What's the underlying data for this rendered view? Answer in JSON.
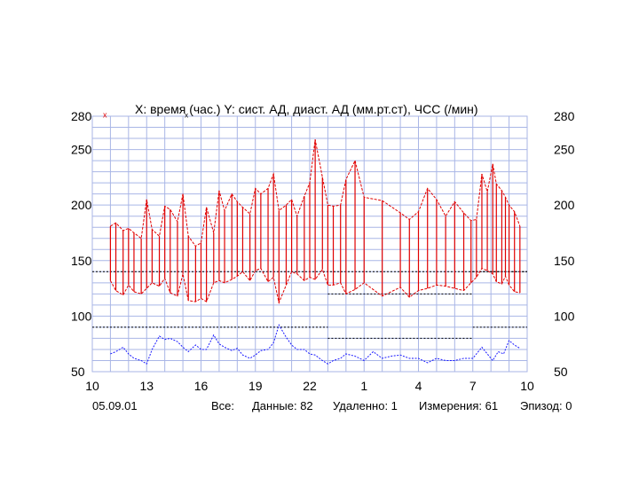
{
  "chart_data": {
    "type": "line",
    "title": "X: время (час.)  Y: сист. АД, диаст. АД (мм.рт.ст), ЧСС (/мин)",
    "x_ticks": [
      "10",
      "13",
      "16",
      "19",
      "22",
      "1",
      "4",
      "7",
      "10"
    ],
    "y_ticks": [
      "50",
      "100",
      "150",
      "200",
      "250",
      "280"
    ],
    "ylim": [
      50,
      280
    ],
    "grid": true,
    "colors": {
      "bp": "#e00000",
      "hr": "#1a1aff",
      "grid": "#a9b6e6",
      "ref": "#000000"
    },
    "reference_lines": [
      {
        "value": 140,
        "from_hour": 10,
        "to_hour": 34,
        "period": "day"
      },
      {
        "value": 120,
        "from_hour": 23,
        "to_hour": 31,
        "period": "night"
      },
      {
        "value": 140,
        "from_hour": 31,
        "to_hour": 34,
        "period": "day"
      },
      {
        "value": 90,
        "from_hour": 10,
        "to_hour": 23,
        "period": "day"
      },
      {
        "value": 80,
        "from_hour": 23,
        "to_hour": 31,
        "period": "night"
      },
      {
        "value": 90,
        "from_hour": 31,
        "to_hour": 34,
        "period": "day"
      }
    ],
    "series": [
      {
        "key": "bp",
        "points": [
          {
            "t": 11.0,
            "sys": 181,
            "dia": 132
          },
          {
            "t": 11.3,
            "sys": 184,
            "dia": 123
          },
          {
            "t": 11.7,
            "sys": 177,
            "dia": 119
          },
          {
            "t": 12.0,
            "sys": 179,
            "dia": 128
          },
          {
            "t": 12.3,
            "sys": 175,
            "dia": 122
          },
          {
            "t": 12.7,
            "sys": 170,
            "dia": 120
          },
          {
            "t": 13.0,
            "sys": 205,
            "dia": 125
          },
          {
            "t": 13.3,
            "sys": 178,
            "dia": 130
          },
          {
            "t": 13.7,
            "sys": 172,
            "dia": 127
          },
          {
            "t": 14.0,
            "sys": 199,
            "dia": 134
          },
          {
            "t": 14.3,
            "sys": 196,
            "dia": 121
          },
          {
            "t": 14.7,
            "sys": 185,
            "dia": 118
          },
          {
            "t": 15.0,
            "sys": 210,
            "dia": 138
          },
          {
            "t": 15.3,
            "sys": 172,
            "dia": 114
          },
          {
            "t": 15.7,
            "sys": 163,
            "dia": 113
          },
          {
            "t": 16.0,
            "sys": 166,
            "dia": 116
          },
          {
            "t": 16.3,
            "sys": 198,
            "dia": 113
          },
          {
            "t": 16.7,
            "sys": 175,
            "dia": 130
          },
          {
            "t": 17.0,
            "sys": 213,
            "dia": 132
          },
          {
            "t": 17.3,
            "sys": 195,
            "dia": 130
          },
          {
            "t": 17.7,
            "sys": 210,
            "dia": 133
          },
          {
            "t": 18.0,
            "sys": 203,
            "dia": 136
          },
          {
            "t": 18.3,
            "sys": 198,
            "dia": 140
          },
          {
            "t": 18.7,
            "sys": 192,
            "dia": 132
          },
          {
            "t": 19.0,
            "sys": 215,
            "dia": 141
          },
          {
            "t": 19.3,
            "sys": 210,
            "dia": 143
          },
          {
            "t": 19.7,
            "sys": 215,
            "dia": 131
          },
          {
            "t": 20.0,
            "sys": 228,
            "dia": 135
          },
          {
            "t": 20.3,
            "sys": 195,
            "dia": 112
          },
          {
            "t": 20.7,
            "sys": 200,
            "dia": 128
          },
          {
            "t": 21.0,
            "sys": 205,
            "dia": 140
          },
          {
            "t": 21.3,
            "sys": 190,
            "dia": 138
          },
          {
            "t": 21.7,
            "sys": 208,
            "dia": 132
          },
          {
            "t": 22.0,
            "sys": 220,
            "dia": 135
          },
          {
            "t": 22.3,
            "sys": 259,
            "dia": 133
          },
          {
            "t": 22.7,
            "sys": 225,
            "dia": 142
          },
          {
            "t": 23.0,
            "sys": 200,
            "dia": 128
          },
          {
            "t": 23.3,
            "sys": 199,
            "dia": 128
          },
          {
            "t": 23.7,
            "sys": 200,
            "dia": 130
          },
          {
            "t": 24.0,
            "sys": 223,
            "dia": 120
          },
          {
            "t": 24.5,
            "sys": 240,
            "dia": 124
          },
          {
            "t": 25.0,
            "sys": 207,
            "dia": 130
          },
          {
            "t": 26.0,
            "sys": 204,
            "dia": 118
          },
          {
            "t": 27.0,
            "sys": 193,
            "dia": 126
          },
          {
            "t": 27.5,
            "sys": 187,
            "dia": 117
          },
          {
            "t": 28.0,
            "sys": 194,
            "dia": 123
          },
          {
            "t": 28.5,
            "sys": 215,
            "dia": 125
          },
          {
            "t": 29.0,
            "sys": 205,
            "dia": 128
          },
          {
            "t": 29.5,
            "sys": 190,
            "dia": 127
          },
          {
            "t": 30.0,
            "sys": 203,
            "dia": 125
          },
          {
            "t": 30.5,
            "sys": 193,
            "dia": 123
          },
          {
            "t": 30.9,
            "sys": 186,
            "dia": 130
          },
          {
            "t": 31.2,
            "sys": 187,
            "dia": 135
          },
          {
            "t": 31.5,
            "sys": 228,
            "dia": 143
          },
          {
            "t": 31.8,
            "sys": 212,
            "dia": 141
          },
          {
            "t": 32.1,
            "sys": 237,
            "dia": 138
          },
          {
            "t": 32.3,
            "sys": 219,
            "dia": 131
          },
          {
            "t": 32.6,
            "sys": 213,
            "dia": 129
          },
          {
            "t": 32.8,
            "sys": 207,
            "dia": 136
          },
          {
            "t": 33.0,
            "sys": 200,
            "dia": 128
          },
          {
            "t": 33.3,
            "sys": 194,
            "dia": 122
          },
          {
            "t": 33.6,
            "sys": 181,
            "dia": 121
          }
        ]
      },
      {
        "key": "hr",
        "values": [
          {
            "t": 11.0,
            "v": 66
          },
          {
            "t": 11.3,
            "v": 68
          },
          {
            "t": 11.7,
            "v": 72
          },
          {
            "t": 12.0,
            "v": 66
          },
          {
            "t": 12.3,
            "v": 62
          },
          {
            "t": 12.7,
            "v": 60
          },
          {
            "t": 13.0,
            "v": 57
          },
          {
            "t": 13.3,
            "v": 70
          },
          {
            "t": 13.7,
            "v": 82
          },
          {
            "t": 14.0,
            "v": 79
          },
          {
            "t": 14.3,
            "v": 80
          },
          {
            "t": 14.7,
            "v": 77
          },
          {
            "t": 15.0,
            "v": 72
          },
          {
            "t": 15.3,
            "v": 68
          },
          {
            "t": 15.7,
            "v": 74
          },
          {
            "t": 16.0,
            "v": 70
          },
          {
            "t": 16.3,
            "v": 70
          },
          {
            "t": 16.7,
            "v": 83
          },
          {
            "t": 17.0,
            "v": 75
          },
          {
            "t": 17.3,
            "v": 72
          },
          {
            "t": 17.7,
            "v": 69
          },
          {
            "t": 18.0,
            "v": 71
          },
          {
            "t": 18.3,
            "v": 65
          },
          {
            "t": 18.7,
            "v": 62
          },
          {
            "t": 19.0,
            "v": 65
          },
          {
            "t": 19.3,
            "v": 69
          },
          {
            "t": 19.7,
            "v": 70
          },
          {
            "t": 20.0,
            "v": 76
          },
          {
            "t": 20.3,
            "v": 92
          },
          {
            "t": 20.7,
            "v": 81
          },
          {
            "t": 21.0,
            "v": 74
          },
          {
            "t": 21.3,
            "v": 70
          },
          {
            "t": 21.7,
            "v": 70
          },
          {
            "t": 22.0,
            "v": 66
          },
          {
            "t": 22.3,
            "v": 65
          },
          {
            "t": 22.7,
            "v": 60
          },
          {
            "t": 23.0,
            "v": 57
          },
          {
            "t": 23.3,
            "v": 60
          },
          {
            "t": 23.7,
            "v": 62
          },
          {
            "t": 24.0,
            "v": 66
          },
          {
            "t": 24.5,
            "v": 64
          },
          {
            "t": 25.0,
            "v": 60
          },
          {
            "t": 25.5,
            "v": 68
          },
          {
            "t": 26.0,
            "v": 62
          },
          {
            "t": 26.5,
            "v": 64
          },
          {
            "t": 27.0,
            "v": 65
          },
          {
            "t": 27.5,
            "v": 62
          },
          {
            "t": 28.0,
            "v": 62
          },
          {
            "t": 28.5,
            "v": 58
          },
          {
            "t": 29.0,
            "v": 62
          },
          {
            "t": 29.5,
            "v": 60
          },
          {
            "t": 30.0,
            "v": 60
          },
          {
            "t": 30.5,
            "v": 62
          },
          {
            "t": 31.0,
            "v": 62
          },
          {
            "t": 31.5,
            "v": 72
          },
          {
            "t": 31.8,
            "v": 66
          },
          {
            "t": 32.1,
            "v": 60
          },
          {
            "t": 32.4,
            "v": 68
          },
          {
            "t": 32.7,
            "v": 66
          },
          {
            "t": 33.0,
            "v": 78
          },
          {
            "t": 33.3,
            "v": 74
          },
          {
            "t": 33.6,
            "v": 71
          }
        ]
      }
    ]
  },
  "footer": {
    "date": "05.09.01",
    "all_label": "Все:",
    "data_label": "Данные: 82",
    "removed_label": "Удаленно: 1",
    "measurements_label": "Измерения: 61",
    "episode_label": "Эпизод: 0"
  }
}
